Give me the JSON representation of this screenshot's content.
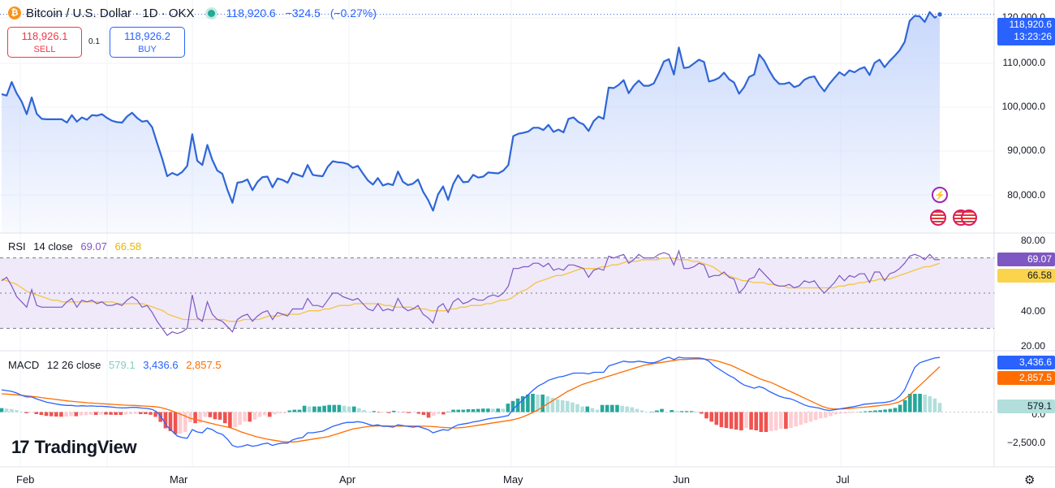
{
  "header": {
    "symbol": "Bitcoin / U.S. Dollar · 1D · OKX",
    "logo_glyph": "₿",
    "last": "118,920.6",
    "change": "−324.5",
    "change_pct": "(−0.27%)"
  },
  "trade": {
    "sell_price": "118,926.1",
    "sell_label": "SELL",
    "spread": "0.1",
    "buy_price": "118,926.2",
    "buy_label": "BUY"
  },
  "price_axis": {
    "ticks": [
      "120,000.0",
      "110,000.0",
      "100,000.0",
      "90,000.0",
      "80,000.0"
    ],
    "last_tag": "118,920.6",
    "countdown": "13:23:26"
  },
  "rsi": {
    "title": "RSI",
    "params": "14 close",
    "value": "69.07",
    "ma_value": "66.58",
    "ticks": [
      "80.00",
      "40.00",
      "20.00"
    ]
  },
  "macd": {
    "title": "MACD",
    "params": "12 26 close",
    "hist_value": "579.1",
    "macd_value": "3,436.6",
    "signal_value": "2,857.5",
    "ticks": [
      "0.0",
      "−2,500.0"
    ]
  },
  "x_axis": [
    "Feb",
    "Mar",
    "Apr",
    "May",
    "Jun",
    "Jul"
  ],
  "brand": {
    "name": "TradingView",
    "mark": "17"
  },
  "events": {
    "lightning": "⚡"
  },
  "colors": {
    "price_line": "#2f66d6",
    "area_top": "#c6d6fb",
    "rsi_line": "#7e57c2",
    "rsi_ma": "#f4c542",
    "rsi_band": "#efe9fa",
    "macd_line": "#2962ff",
    "signal_line": "#ff6d00",
    "hist_up_strong": "#26a69a",
    "hist_up_weak": "#b2dfdb",
    "hist_down_strong": "#ef5350",
    "hist_down_weak": "#ffcdd2",
    "sell": "#f23645",
    "buy": "#2962ff",
    "rsi_tag": "#7e57c2",
    "ma_tag": "#fbd34d",
    "hist_tag": "#b2dfdb"
  },
  "chart_data": [
    {
      "type": "line",
      "name": "Price",
      "x_domain": [
        0,
        168
      ],
      "ylim": [
        72000,
        122000
      ],
      "values": [
        101800,
        101500,
        104400,
        102000,
        100200,
        97500,
        101100,
        97600,
        96500,
        96400,
        96400,
        96400,
        96400,
        95700,
        97300,
        95900,
        96800,
        96300,
        97300,
        97200,
        97500,
        96700,
        96100,
        95800,
        95700,
        97000,
        97800,
        96700,
        95900,
        96100,
        94700,
        91300,
        88000,
        84200,
        84900,
        84400,
        85100,
        86400,
        93200,
        87500,
        86600,
        90900,
        87700,
        85400,
        84700,
        81300,
        78500,
        82800,
        83000,
        83500,
        81200,
        83000,
        84000,
        84100,
        81800,
        83700,
        83400,
        82800,
        84900,
        84500,
        84100,
        86600,
        84500,
        84300,
        84200,
        86200,
        87400,
        87200,
        87100,
        86800,
        86000,
        86400,
        84800,
        83300,
        82400,
        83800,
        82200,
        82600,
        82300,
        85200,
        83000,
        82300,
        82600,
        83500,
        80900,
        79100,
        76800,
        80300,
        82000,
        79100,
        82500,
        84400,
        82900,
        83000,
        84500,
        83900,
        84100,
        85000,
        84900,
        84800,
        85400,
        86600,
        92800,
        93300,
        93500,
        93800,
        94600,
        94600,
        94100,
        95200,
        93700,
        94200,
        93600,
        96500,
        96800,
        95800,
        95300,
        93900,
        96000,
        97000,
        96500,
        103200,
        103100,
        103800,
        104800,
        102000,
        103600,
        104700,
        103600,
        103600,
        104100,
        106300,
        108800,
        109300,
        106000,
        111800,
        107400,
        107600,
        108400,
        109200,
        108700,
        104500,
        104800,
        105300,
        106400,
        105000,
        104300,
        101900,
        103300,
        105500,
        106000,
        110300,
        109000,
        106900,
        105100,
        104000,
        104000,
        104300,
        103300,
        103700,
        104900,
        105400,
        105600,
        103800,
        102400,
        104000,
        105300,
        106500,
        105800,
        106900,
        106500,
        107200,
        107600,
        105900,
        108500,
        109200,
        107600,
        108900,
        110000,
        111200,
        113000,
        117500,
        118600,
        118500,
        117300,
        119400,
        118200,
        118900
      ],
      "last": 118920.6
    },
    {
      "type": "line",
      "name": "RSI",
      "ylim": [
        20,
        80
      ],
      "levels": [
        70,
        50,
        30
      ],
      "rsi": [
        57,
        59,
        54,
        48,
        45,
        42,
        52,
        43,
        42,
        42,
        42,
        42,
        42,
        45,
        47,
        42,
        46,
        45,
        46,
        44,
        45,
        43,
        43,
        44,
        43,
        46,
        48,
        46,
        42,
        43,
        39,
        34,
        30,
        26,
        28,
        27,
        28,
        30,
        49,
        36,
        34,
        45,
        38,
        35,
        34,
        31,
        28,
        35,
        37,
        38,
        34,
        37,
        39,
        40,
        35,
        39,
        38,
        37,
        41,
        41,
        41,
        47,
        43,
        43,
        42,
        46,
        50,
        50,
        48,
        47,
        46,
        47,
        44,
        41,
        40,
        44,
        40,
        41,
        40,
        47,
        42,
        40,
        41,
        43,
        38,
        36,
        33,
        42,
        44,
        39,
        45,
        47,
        44,
        45,
        47,
        46,
        46,
        48,
        49,
        48,
        50,
        54,
        64,
        64,
        65,
        65,
        67,
        67,
        65,
        67,
        63,
        64,
        63,
        66,
        66,
        65,
        64,
        59,
        63,
        64,
        63,
        71,
        70,
        71,
        72,
        67,
        69,
        72,
        70,
        70,
        70,
        72,
        73,
        72,
        66,
        74,
        64,
        64,
        65,
        67,
        66,
        59,
        60,
        60,
        62,
        59,
        58,
        50,
        53,
        58,
        59,
        64,
        61,
        58,
        55,
        54,
        54,
        55,
        53,
        54,
        57,
        56,
        57,
        53,
        50,
        53,
        56,
        60,
        57,
        60,
        59,
        61,
        61,
        56,
        62,
        62,
        57,
        61,
        62,
        64,
        67,
        71,
        72,
        71,
        69,
        72,
        69,
        69
      ],
      "rsi_ma": [
        58,
        57,
        56,
        55,
        53,
        51,
        50,
        49,
        48,
        47,
        46,
        46,
        45,
        45,
        45,
        45,
        45,
        45,
        45,
        45,
        45,
        45,
        45,
        44,
        44,
        44,
        44,
        44,
        44,
        43,
        42,
        41,
        40,
        38,
        37,
        36,
        35,
        35,
        35,
        35,
        35,
        35,
        35,
        35,
        35,
        34,
        34,
        34,
        35,
        35,
        35,
        35,
        36,
        37,
        37,
        37,
        38,
        38,
        38,
        38,
        39,
        40,
        40,
        40,
        41,
        41,
        42,
        43,
        43,
        43,
        44,
        44,
        44,
        44,
        44,
        44,
        43,
        43,
        42,
        42,
        42,
        42,
        41,
        41,
        41,
        40,
        40,
        40,
        40,
        41,
        41,
        42,
        42,
        43,
        43,
        43,
        44,
        44,
        45,
        46,
        46,
        47,
        49,
        51,
        52,
        54,
        56,
        57,
        58,
        59,
        60,
        60,
        61,
        62,
        63,
        64,
        64,
        64,
        64,
        65,
        65,
        66,
        66,
        67,
        68,
        68,
        68,
        69,
        69,
        69,
        69,
        70,
        70,
        70,
        69,
        69,
        69,
        68,
        68,
        67,
        66,
        65,
        63,
        61,
        60,
        59,
        58,
        57,
        57,
        56,
        56,
        56,
        55,
        55,
        54,
        54,
        53,
        53,
        53,
        53,
        53,
        53,
        53,
        53,
        53,
        53,
        54,
        54,
        55,
        55,
        56,
        56,
        57,
        57,
        58,
        58,
        58,
        59,
        60,
        61,
        62,
        63,
        64,
        65,
        65,
        66,
        67
      ]
    },
    {
      "type": "bar",
      "name": "MACD",
      "ylim": [
        -3700,
        3700
      ],
      "macd": [
        1400,
        1350,
        1300,
        1200,
        1050,
        950,
        950,
        820,
        720,
        620,
        560,
        500,
        450,
        420,
        420,
        380,
        400,
        380,
        390,
        360,
        360,
        340,
        310,
        280,
        260,
        270,
        300,
        290,
        250,
        230,
        170,
        0,
        -400,
        -900,
        -1200,
        -1500,
        -1600,
        -1650,
        -1100,
        -1250,
        -1300,
        -1000,
        -1100,
        -1300,
        -1400,
        -1700,
        -2100,
        -2200,
        -2150,
        -2050,
        -2150,
        -2100,
        -2000,
        -1950,
        -2100,
        -2000,
        -1950,
        -1950,
        -1750,
        -1650,
        -1600,
        -1300,
        -1300,
        -1250,
        -1200,
        -1050,
        -900,
        -800,
        -700,
        -650,
        -650,
        -600,
        -650,
        -750,
        -850,
        -800,
        -900,
        -900,
        -950,
        -800,
        -850,
        -900,
        -950,
        -900,
        -1000,
        -1100,
        -1300,
        -1200,
        -1100,
        -1150,
        -950,
        -800,
        -750,
        -700,
        -620,
        -570,
        -500,
        -430,
        -380,
        -340,
        -280,
        -220,
        200,
        500,
        800,
        1100,
        1400,
        1650,
        1800,
        2000,
        2100,
        2200,
        2250,
        2350,
        2450,
        2450,
        2450,
        2400,
        2500,
        2500,
        2500,
        2900,
        3000,
        3100,
        3200,
        3150,
        3150,
        3200,
        3150,
        3100,
        3100,
        3200,
        3350,
        3450,
        3300,
        3450,
        3400,
        3400,
        3400,
        3400,
        3350,
        3200,
        2900,
        2700,
        2500,
        2300,
        2150,
        1900,
        1700,
        1600,
        1500,
        1600,
        1500,
        1300,
        1150,
        1000,
        900,
        850,
        750,
        600,
        450,
        350,
        300,
        250,
        150,
        100,
        150,
        200,
        250,
        300,
        350,
        420,
        500,
        520,
        560,
        580,
        600,
        660,
        760,
        1000,
        1400,
        2100,
        2800,
        3100,
        3200,
        3300,
        3400,
        3437
      ],
      "signal": [
        1150,
        1130,
        1110,
        1080,
        1050,
        1020,
        980,
        950,
        900,
        860,
        820,
        780,
        740,
        700,
        670,
        640,
        610,
        580,
        560,
        540,
        520,
        500,
        480,
        460,
        440,
        430,
        420,
        400,
        380,
        360,
        340,
        300,
        220,
        120,
        0,
        -120,
        -250,
        -400,
        -450,
        -550,
        -620,
        -700,
        -780,
        -850,
        -920,
        -1000,
        -1120,
        -1250,
        -1350,
        -1450,
        -1550,
        -1620,
        -1700,
        -1750,
        -1800,
        -1850,
        -1870,
        -1880,
        -1850,
        -1800,
        -1750,
        -1700,
        -1650,
        -1600,
        -1550,
        -1450,
        -1350,
        -1250,
        -1150,
        -1050,
        -1000,
        -950,
        -900,
        -880,
        -870,
        -860,
        -870,
        -880,
        -890,
        -880,
        -880,
        -880,
        -890,
        -890,
        -900,
        -920,
        -950,
        -970,
        -990,
        -1000,
        -980,
        -950,
        -900,
        -850,
        -800,
        -750,
        -700,
        -650,
        -600,
        -550,
        -500,
        -430,
        -330,
        -200,
        -50,
        100,
        300,
        500,
        700,
        900,
        1100,
        1300,
        1450,
        1600,
        1750,
        1850,
        1950,
        2050,
        2150,
        2250,
        2350,
        2450,
        2550,
        2650,
        2750,
        2850,
        2950,
        3000,
        3050,
        3100,
        3150,
        3200,
        3250,
        3300,
        3300,
        3320,
        3340,
        3340,
        3320,
        3300,
        3240,
        3150,
        3050,
        2950,
        2800,
        2650,
        2500,
        2350,
        2200,
        2050,
        1950,
        1850,
        1700,
        1550,
        1400,
        1250,
        1100,
        950,
        800,
        650,
        500,
        350,
        250,
        200,
        200,
        200,
        220,
        250,
        280,
        300,
        330,
        370,
        400,
        440,
        480,
        540,
        640,
        800,
        1050,
        1350,
        1650,
        1950,
        2250,
        2550,
        2858
      ],
      "histogram": [
        250,
        220,
        190,
        120,
        0,
        -70,
        -30,
        -130,
        -180,
        -240,
        -260,
        -280,
        -290,
        -280,
        -250,
        -260,
        -210,
        -200,
        -170,
        -180,
        -160,
        -160,
        -170,
        -180,
        -180,
        -160,
        -120,
        -110,
        -130,
        -130,
        -170,
        -300,
        -620,
        -1020,
        -1200,
        -1380,
        -1350,
        -1250,
        -650,
        -700,
        -680,
        -300,
        -320,
        -450,
        -480,
        -700,
        -980,
        -950,
        -800,
        -600,
        -600,
        -480,
        -300,
        -200,
        -300,
        -150,
        -80,
        -70,
        100,
        150,
        150,
        400,
        350,
        350,
        350,
        400,
        450,
        450,
        450,
        400,
        350,
        350,
        250,
        130,
        20,
        60,
        -30,
        -20,
        -60,
        80,
        30,
        -20,
        -60,
        -10,
        -100,
        -180,
        -350,
        -230,
        -110,
        -150,
        30,
        150,
        150,
        150,
        180,
        180,
        200,
        220,
        220,
        210,
        220,
        210,
        530,
        700,
        850,
        1000,
        1100,
        1150,
        1100,
        1100,
        1000,
        900,
        800,
        750,
        700,
        600,
        500,
        350,
        350,
        250,
        150,
        450,
        450,
        450,
        450,
        400,
        350,
        300,
        200,
        100,
        0,
        0,
        100,
        200,
        0,
        130,
        60,
        60,
        60,
        60,
        30,
        -100,
        -400,
        -600,
        -800,
        -950,
        -1000,
        -1050,
        -1100,
        -1150,
        -1000,
        -1100,
        -1150,
        -1250,
        -1250,
        -1200,
        -1150,
        -1050,
        -1050,
        -1000,
        -900,
        -800,
        -700,
        -600,
        -500,
        -400,
        -350,
        -250,
        -150,
        -100,
        -80,
        -60,
        -30,
        0,
        50,
        70,
        100,
        120,
        160,
        200,
        260,
        460,
        750,
        1150,
        1150,
        1150,
        1100,
        1000,
        850,
        579
      ]
    }
  ]
}
